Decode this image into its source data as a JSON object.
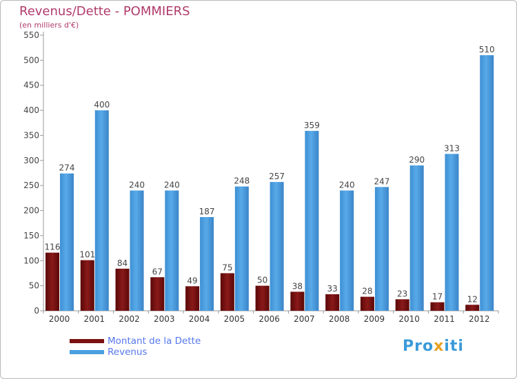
{
  "title": "Revenus/Dette - POMMIERS",
  "subtitle": "(en milliers d'€)",
  "legend": {
    "debt_label": "Montant de la Dette",
    "revenue_label": "Revenus"
  },
  "logo_text": {
    "part1": "Pro",
    "part2": "x",
    "part3": "iti"
  },
  "colors": {
    "debt": "#7a1010",
    "revenue": "#4a9fe0",
    "title": "#b03a6a",
    "legend_text": "#5577ee"
  },
  "chart_data": {
    "type": "bar",
    "title": "Revenus/Dette - POMMIERS",
    "subtitle": "(en milliers d'€)",
    "categories": [
      "2000",
      "2001",
      "2002",
      "2003",
      "2004",
      "2005",
      "2006",
      "2007",
      "2008",
      "2009",
      "2010",
      "2011",
      "2012"
    ],
    "series": [
      {
        "name": "Montant de la Dette",
        "values": [
          116,
          101,
          84,
          67,
          49,
          75,
          50,
          38,
          33,
          28,
          23,
          17,
          12
        ]
      },
      {
        "name": "Revenus",
        "values": [
          274,
          400,
          240,
          240,
          187,
          248,
          257,
          359,
          240,
          247,
          290,
          313,
          510
        ]
      }
    ],
    "ylim": [
      0,
      550
    ],
    "yticks": [
      0,
      50,
      100,
      150,
      200,
      250,
      300,
      350,
      400,
      450,
      500,
      550
    ],
    "grid": false,
    "legend_position": "bottom-left"
  }
}
